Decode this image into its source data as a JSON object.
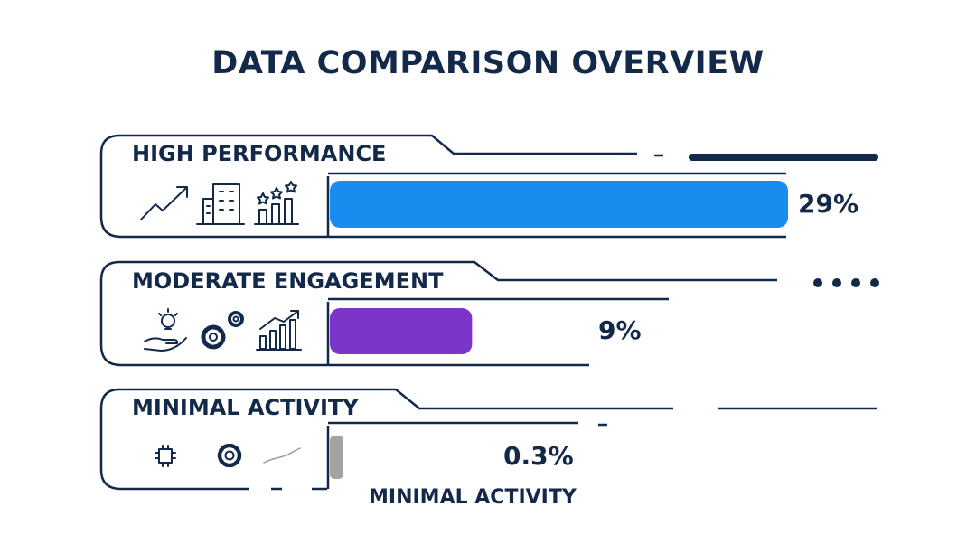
{
  "chart_data": {
    "type": "bar",
    "orientation": "horizontal",
    "title": "DATA COMPARISON OVERVIEW",
    "categories": [
      "HIGH PERFORMANCE",
      "MODERATE ENGAGEMENT",
      "MINIMAL ACTIVITY"
    ],
    "values": [
      29,
      9,
      0.3
    ],
    "value_labels": [
      "29%",
      "9%",
      "0.3%"
    ],
    "colors": [
      "#1a8cf0",
      "#7b35c9",
      "#a3a3a3"
    ],
    "sub_labels": [
      "",
      "",
      "MINIMAL ACTIVITY"
    ],
    "icons": [
      [
        "trend-up-icon",
        "building-icon",
        "rating-chart-icon"
      ],
      [
        "idea-hand-icon",
        "gears-icon",
        "growth-chart-icon"
      ],
      [
        "chip-icon",
        "gear-icon",
        "flat-line-icon"
      ]
    ],
    "xlim": [
      0,
      29
    ],
    "legend": "none",
    "grid": false
  }
}
